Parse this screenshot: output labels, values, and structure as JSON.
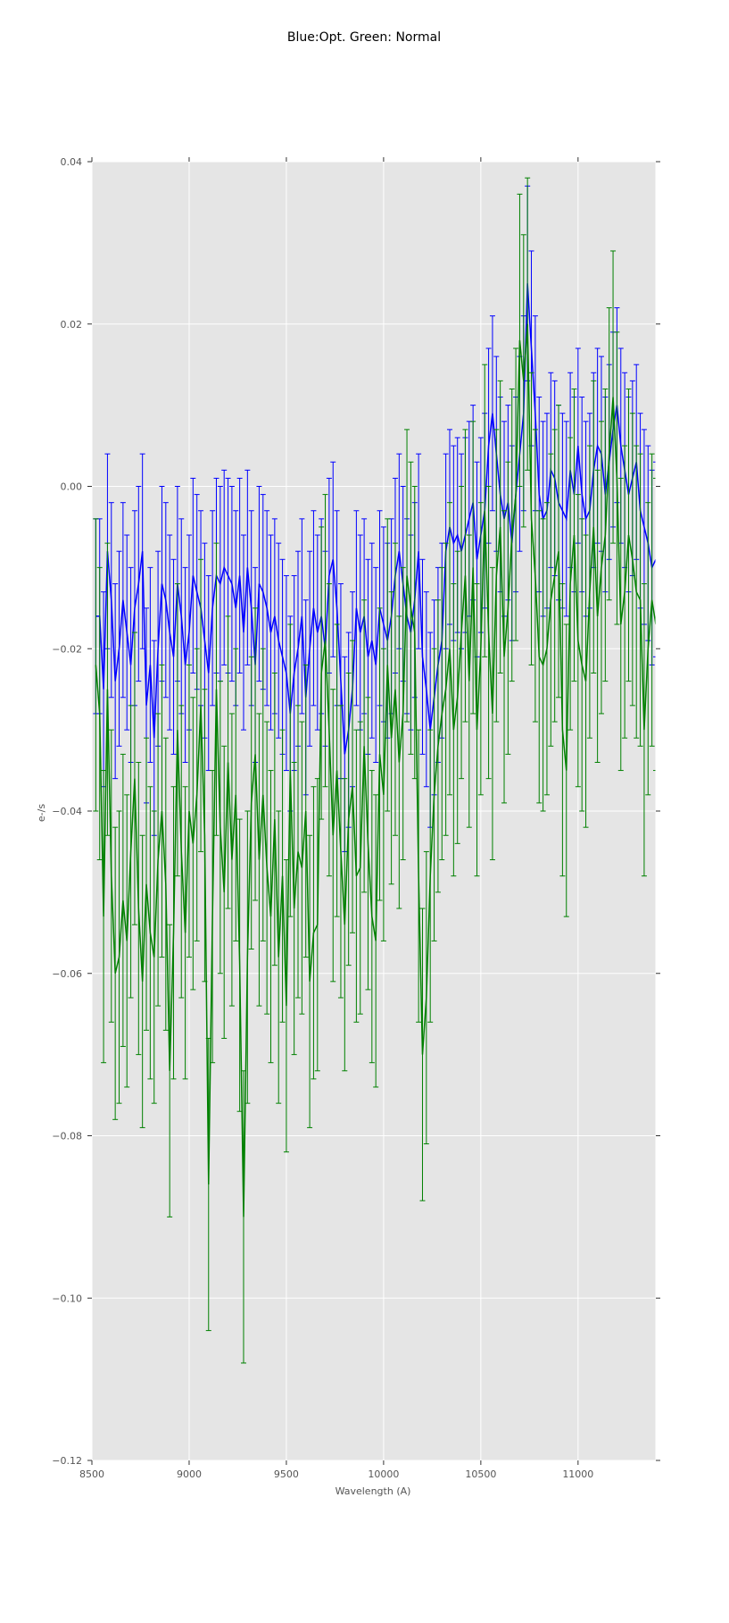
{
  "chart_data": {
    "type": "line",
    "title": "Blue:Opt. Green: Normal",
    "xlabel": "Wavelength (A)",
    "ylabel": "e-/s",
    "xlim": [
      8500,
      11400
    ],
    "ylim": [
      -0.12,
      0.04
    ],
    "xticks": [
      8500,
      9000,
      9500,
      10000,
      10500,
      11000
    ],
    "xtick_labels": [
      "8500",
      "9000",
      "9500",
      "10000",
      "10500",
      "11000"
    ],
    "yticks": [
      0.04,
      0.02,
      0.0,
      -0.02,
      -0.04,
      -0.06,
      -0.08,
      -0.1,
      -0.12
    ],
    "ytick_labels": [
      "0.04",
      "0.02",
      "0.00",
      "−0.02",
      "−0.04",
      "−0.06",
      "−0.08",
      "−0.10",
      "−0.12"
    ],
    "grid": true,
    "background": "#e5e5e5",
    "x": [
      8520,
      8540,
      8560,
      8580,
      8600,
      8620,
      8640,
      8660,
      8680,
      8700,
      8720,
      8740,
      8760,
      8780,
      8800,
      8820,
      8840,
      8860,
      8880,
      8900,
      8920,
      8940,
      8960,
      8980,
      9000,
      9020,
      9040,
      9060,
      9080,
      9100,
      9120,
      9140,
      9160,
      9180,
      9200,
      9220,
      9240,
      9260,
      9280,
      9300,
      9320,
      9340,
      9360,
      9380,
      9400,
      9420,
      9440,
      9460,
      9480,
      9500,
      9520,
      9540,
      9560,
      9580,
      9600,
      9620,
      9640,
      9660,
      9680,
      9700,
      9720,
      9740,
      9760,
      9780,
      9800,
      9820,
      9840,
      9860,
      9880,
      9900,
      9920,
      9940,
      9960,
      9980,
      10000,
      10020,
      10040,
      10060,
      10080,
      10100,
      10120,
      10140,
      10160,
      10180,
      10200,
      10220,
      10240,
      10260,
      10280,
      10300,
      10320,
      10340,
      10360,
      10380,
      10400,
      10420,
      10440,
      10460,
      10480,
      10500,
      10520,
      10540,
      10560,
      10580,
      10600,
      10620,
      10640,
      10660,
      10680,
      10700,
      10720,
      10740,
      10760,
      10780,
      10800,
      10820,
      10840,
      10860,
      10880,
      10900,
      10920,
      10940,
      10960,
      10980,
      11000,
      11020,
      11040,
      11060,
      11080,
      11100,
      11120,
      11140,
      11160,
      11180,
      11200,
      11220,
      11240,
      11260,
      11280,
      11300,
      11320,
      11340,
      11360,
      11380,
      11400
    ],
    "series": [
      {
        "color": "#0000ff",
        "yerr": 0.012,
        "values": [
          -0.016,
          -0.016,
          -0.025,
          -0.008,
          -0.014,
          -0.024,
          -0.02,
          -0.014,
          -0.018,
          -0.022,
          -0.015,
          -0.012,
          -0.008,
          -0.027,
          -0.022,
          -0.031,
          -0.02,
          -0.012,
          -0.014,
          -0.018,
          -0.021,
          -0.012,
          -0.016,
          -0.022,
          -0.018,
          -0.011,
          -0.013,
          -0.015,
          -0.019,
          -0.023,
          -0.015,
          -0.011,
          -0.012,
          -0.01,
          -0.011,
          -0.012,
          -0.015,
          -0.011,
          -0.018,
          -0.01,
          -0.015,
          -0.022,
          -0.012,
          -0.013,
          -0.015,
          -0.018,
          -0.016,
          -0.019,
          -0.021,
          -0.023,
          -0.028,
          -0.023,
          -0.02,
          -0.016,
          -0.026,
          -0.02,
          -0.015,
          -0.018,
          -0.016,
          -0.02,
          -0.011,
          -0.009,
          -0.015,
          -0.024,
          -0.033,
          -0.03,
          -0.025,
          -0.015,
          -0.018,
          -0.016,
          -0.021,
          -0.019,
          -0.022,
          -0.015,
          -0.017,
          -0.019,
          -0.016,
          -0.011,
          -0.008,
          -0.012,
          -0.016,
          -0.018,
          -0.014,
          -0.008,
          -0.021,
          -0.025,
          -0.03,
          -0.026,
          -0.022,
          -0.019,
          -0.008,
          -0.005,
          -0.007,
          -0.006,
          -0.008,
          -0.006,
          -0.004,
          -0.002,
          -0.009,
          -0.006,
          -0.003,
          0.005,
          0.009,
          0.004,
          -0.001,
          -0.004,
          -0.002,
          -0.007,
          -0.001,
          0.004,
          0.009,
          0.025,
          0.017,
          0.009,
          -0.001,
          -0.004,
          -0.003,
          0.002,
          0.001,
          -0.002,
          -0.003,
          -0.004,
          0.002,
          -0.001,
          0.005,
          -0.001,
          -0.004,
          -0.003,
          0.002,
          0.005,
          0.004,
          -0.001,
          0.003,
          0.007,
          0.01,
          0.005,
          0.002,
          -0.001,
          0.001,
          0.003,
          -0.003,
          -0.005,
          -0.007,
          -0.01,
          -0.009
        ]
      },
      {
        "color": "#008000",
        "yerr": 0.018,
        "values": [
          -0.022,
          -0.028,
          -0.053,
          -0.025,
          -0.048,
          -0.06,
          -0.058,
          -0.051,
          -0.056,
          -0.045,
          -0.036,
          -0.052,
          -0.061,
          -0.049,
          -0.055,
          -0.058,
          -0.046,
          -0.04,
          -0.049,
          -0.072,
          -0.055,
          -0.03,
          -0.045,
          -0.055,
          -0.04,
          -0.044,
          -0.038,
          -0.027,
          -0.043,
          -0.086,
          -0.053,
          -0.025,
          -0.042,
          -0.05,
          -0.034,
          -0.046,
          -0.038,
          -0.059,
          -0.09,
          -0.058,
          -0.039,
          -0.033,
          -0.046,
          -0.038,
          -0.047,
          -0.053,
          -0.041,
          -0.058,
          -0.048,
          -0.064,
          -0.035,
          -0.052,
          -0.045,
          -0.047,
          -0.04,
          -0.061,
          -0.055,
          -0.054,
          -0.023,
          -0.019,
          -0.03,
          -0.043,
          -0.035,
          -0.045,
          -0.054,
          -0.041,
          -0.037,
          -0.048,
          -0.047,
          -0.032,
          -0.044,
          -0.053,
          -0.056,
          -0.033,
          -0.038,
          -0.022,
          -0.031,
          -0.025,
          -0.034,
          -0.028,
          -0.011,
          -0.015,
          -0.018,
          -0.048,
          -0.07,
          -0.063,
          -0.048,
          -0.038,
          -0.032,
          -0.028,
          -0.025,
          -0.02,
          -0.03,
          -0.026,
          -0.018,
          -0.011,
          -0.024,
          -0.01,
          -0.03,
          -0.02,
          -0.003,
          -0.018,
          -0.028,
          -0.011,
          -0.005,
          -0.021,
          -0.015,
          -0.006,
          -0.001,
          0.018,
          0.013,
          0.02,
          -0.004,
          -0.011,
          -0.021,
          -0.022,
          -0.02,
          -0.014,
          -0.011,
          -0.008,
          -0.03,
          -0.035,
          -0.012,
          -0.006,
          -0.019,
          -0.022,
          -0.024,
          -0.013,
          -0.005,
          -0.016,
          -0.01,
          -0.006,
          0.004,
          0.011,
          0.001,
          -0.017,
          -0.013,
          -0.006,
          -0.009,
          -0.013,
          -0.014,
          -0.03,
          -0.02,
          -0.014,
          -0.017
        ]
      }
    ]
  }
}
